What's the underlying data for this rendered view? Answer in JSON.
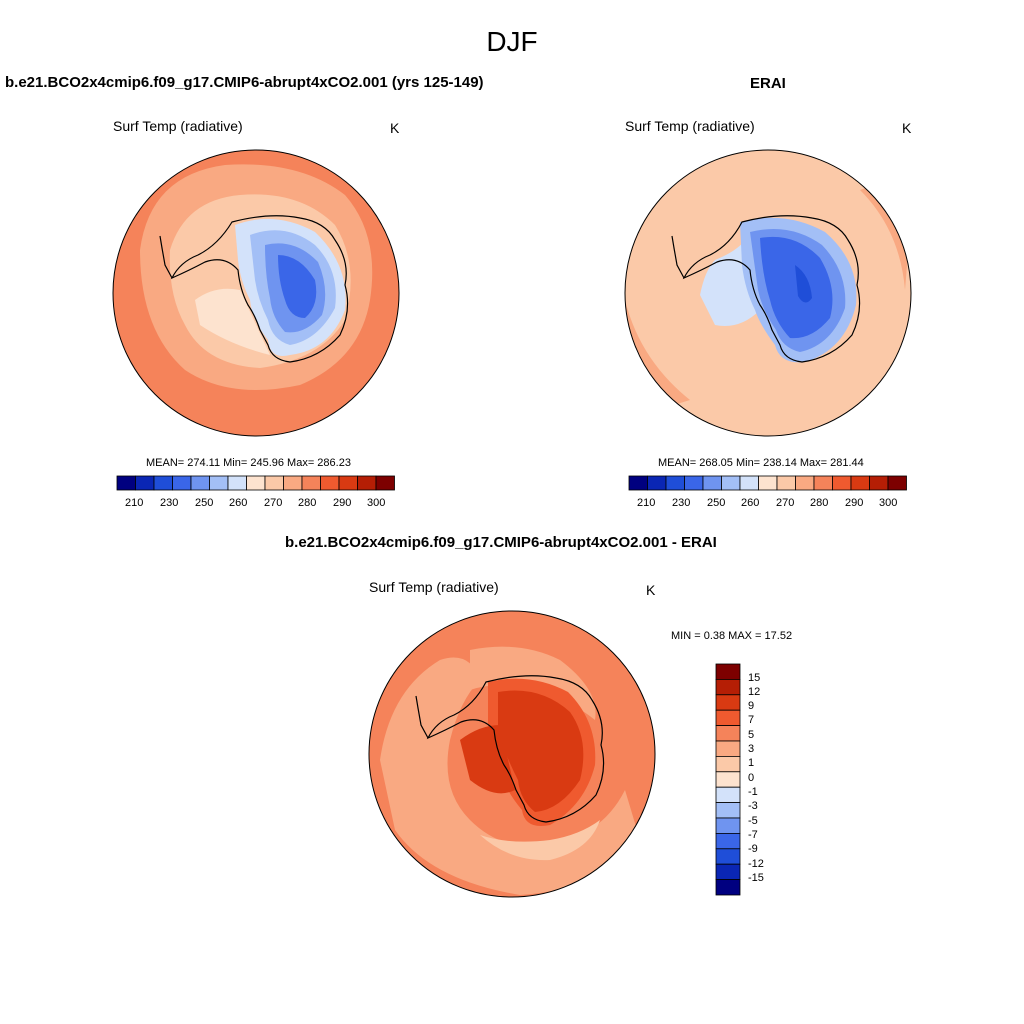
{
  "figure_title": "DJF",
  "colors": {
    "cold": [
      "#000080",
      "#0a26b4",
      "#1f4ed8",
      "#3a66e8",
      "#6f94f0",
      "#a3bff6",
      "#d3e2fa"
    ],
    "warm": [
      "#fde3cf",
      "#fbc9a8",
      "#f9a982",
      "#f5835a",
      "#ef5a2f",
      "#d93a12",
      "#b51e05",
      "#7d0000"
    ],
    "coast": "#000000"
  },
  "panels": [
    {
      "title": "b.e21.BCO2x4cmip6.f09_g17.CMIP6-abrupt4xCO2.001 (yrs 125-149)",
      "variable": "Surf Temp (radiative)",
      "units": "K",
      "stats": "MEAN= 274.11  Min= 245.96  Max= 286.23",
      "colorbar_ticks": [
        "210",
        "230",
        "250",
        "260",
        "270",
        "280",
        "290",
        "300"
      ]
    },
    {
      "title": "ERAI",
      "variable": "Surf Temp (radiative)",
      "units": "K",
      "stats": "MEAN= 268.05  Min= 238.14  Max= 281.44",
      "colorbar_ticks": [
        "210",
        "230",
        "250",
        "260",
        "270",
        "280",
        "290",
        "300"
      ]
    },
    {
      "title": "b.e21.BCO2x4cmip6.f09_g17.CMIP6-abrupt4xCO2.001 - ERAI",
      "variable": "Surf Temp (radiative)",
      "units": "K",
      "stats": "MIN =   0.38 MAX =  17.52",
      "colorbar_ticks": [
        "15",
        "12",
        "9",
        "7",
        "5",
        "3",
        "1",
        "0",
        "-1",
        "-3",
        "-5",
        "-7",
        "-9",
        "-12",
        "-15"
      ]
    }
  ]
}
